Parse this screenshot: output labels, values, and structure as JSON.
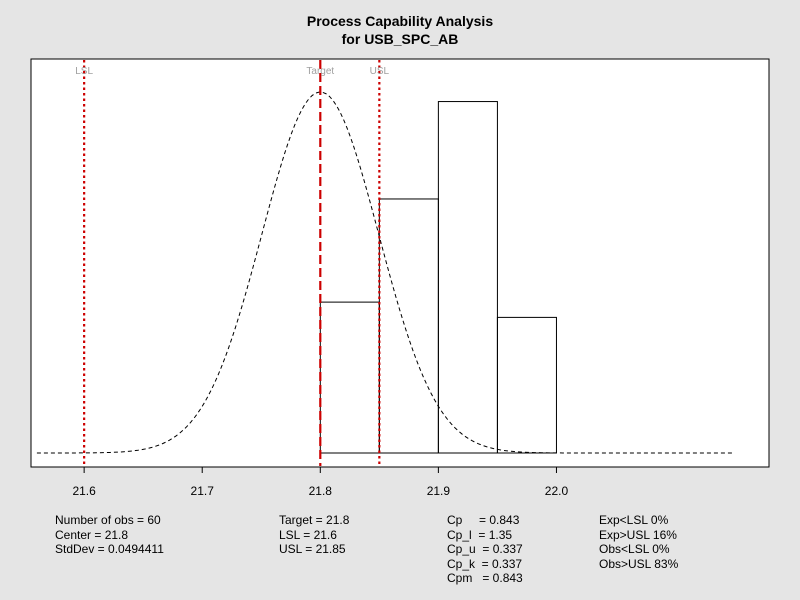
{
  "chart_data": {
    "type": "bar",
    "title": "Process Capability Analysis",
    "subtitle": "for USB_SPC_AB",
    "x_range": [
      21.555,
      22.18
    ],
    "x_ticks": [
      "21.6",
      "21.7",
      "21.8",
      "21.9",
      "22.0"
    ],
    "histogram": {
      "bin_edges": [
        21.8,
        21.85,
        21.9,
        21.95,
        22.0
      ],
      "heights_relative": [
        0.395,
        0.665,
        0.92,
        0.355
      ]
    },
    "normal_curve": {
      "mean": 21.8,
      "sd": 0.0494411,
      "x_from": 21.56,
      "x_to": 22.15,
      "peak_relative": 0.945
    },
    "spec_lines": [
      {
        "label": "LSL",
        "value": 21.6,
        "style": "dotted"
      },
      {
        "label": "Target",
        "value": 21.8,
        "style": "dashed"
      },
      {
        "label": "USL",
        "value": 21.85,
        "style": "dotted"
      }
    ],
    "colors": {
      "spec_line": "#cc0000",
      "label": "#a0a0a0",
      "background": "#e5e5e5"
    },
    "grid": false,
    "stats": {
      "col1": [
        "Number of obs = 60",
        "Center = 21.8",
        "StdDev = 0.0494411"
      ],
      "col2": [
        "Target = 21.8",
        "LSL = 21.6",
        "USL = 21.85"
      ],
      "col3": [
        "Cp     = 0.843",
        "Cp_l  = 1.35",
        "Cp_u  = 0.337",
        "Cp_k  = 0.337",
        "Cpm   = 0.843"
      ],
      "col4": [
        "Exp<LSL 0%",
        "Exp>USL 16%",
        "Obs<LSL 0%",
        "Obs>USL 83%"
      ]
    }
  }
}
